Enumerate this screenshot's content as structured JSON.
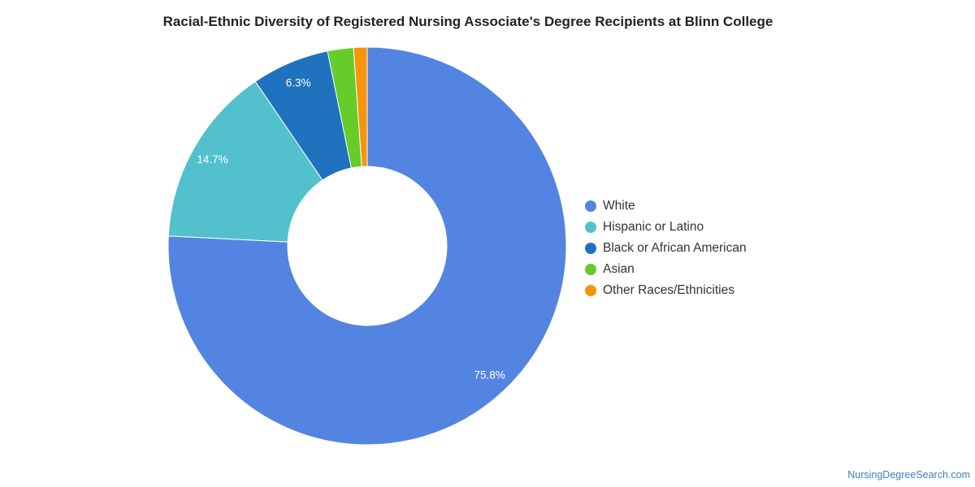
{
  "chart_data": {
    "type": "pie",
    "title": "Racial-Ethnic Diversity of Registered Nursing Associate's Degree Recipients at Blinn College",
    "donut": true,
    "legend_position": "right",
    "series": [
      {
        "name": "White",
        "value": 75.8,
        "label": "75.8%",
        "color": "#5484e2"
      },
      {
        "name": "Hispanic or Latino",
        "value": 14.7,
        "label": "14.7%",
        "color": "#52c1cd"
      },
      {
        "name": "Black or African American",
        "value": 6.3,
        "label": "6.3%",
        "color": "#1f72be"
      },
      {
        "name": "Asian",
        "value": 2.1,
        "label": "",
        "color": "#66cc2a"
      },
      {
        "name": "Other Races/Ethnicities",
        "value": 1.1,
        "label": "",
        "color": "#f7940b"
      }
    ]
  },
  "watermark": "NursingDegreeSearch.com"
}
